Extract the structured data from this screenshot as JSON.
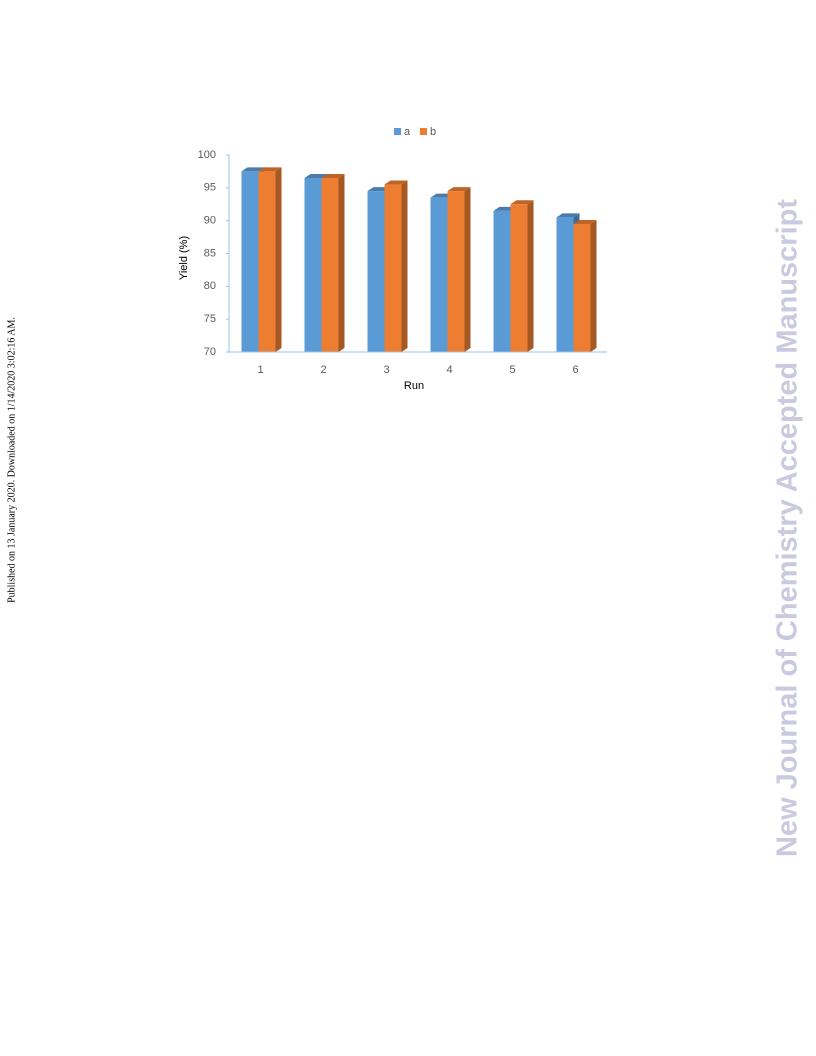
{
  "chart_data": {
    "type": "bar",
    "xlabel": "Run",
    "ylabel": "Yield (%)",
    "categories": [
      "1",
      "2",
      "3",
      "4",
      "5",
      "6"
    ],
    "series": [
      {
        "name": "a",
        "color": "#5b9bd5",
        "values": [
          97.5,
          96.5,
          94.5,
          93.5,
          91.5,
          90.5
        ]
      },
      {
        "name": "b",
        "color": "#ed7d31",
        "values": [
          97.5,
          96.5,
          95.5,
          94.5,
          92.5,
          89.5
        ]
      }
    ],
    "ylim": [
      70,
      100
    ],
    "yticks": [
      70,
      75,
      80,
      85,
      90,
      95,
      100
    ],
    "grid": false,
    "legend": "top"
  },
  "side_note": "Published on 13 January 2020. Downloaded on 1/14/2020 3:02:16 AM.",
  "watermark": "New Journal of Chemistry Accepted Manuscript"
}
